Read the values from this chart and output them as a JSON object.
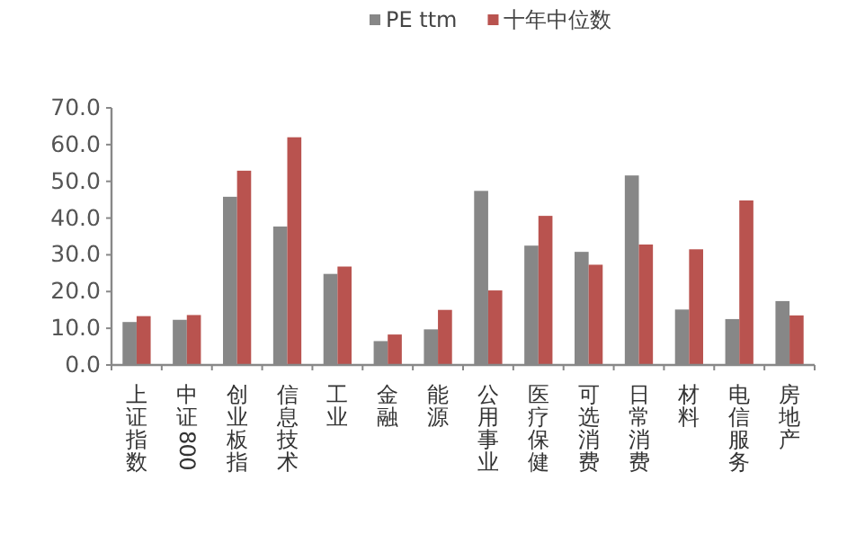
{
  "chart_data": {
    "type": "bar",
    "categories": [
      "上证指数",
      "中证800",
      "创业板指",
      "信息技术",
      "工业",
      "金融",
      "能源",
      "公用事业",
      "医疗保健",
      "可选消费",
      "日常消费",
      "材料",
      "电信服务",
      "房地产"
    ],
    "series": [
      {
        "name": "PE ttm",
        "color": "#878787",
        "values": [
          11.7,
          12.3,
          45.8,
          37.7,
          24.8,
          6.5,
          9.7,
          47.4,
          32.5,
          30.8,
          51.6,
          15.1,
          12.5,
          17.4
        ]
      },
      {
        "name": "十年中位数",
        "color": "#b9534f",
        "values": [
          13.3,
          13.6,
          52.9,
          62.0,
          26.8,
          8.3,
          15.0,
          20.3,
          40.6,
          27.3,
          32.8,
          31.5,
          44.8,
          13.5
        ]
      }
    ],
    "ylim": [
      0,
      70
    ],
    "yticks": [
      {
        "value": 0,
        "label": "0.0"
      },
      {
        "value": 10,
        "label": "10.0"
      },
      {
        "value": 20,
        "label": "20.0"
      },
      {
        "value": 30,
        "label": "30.0"
      },
      {
        "value": 40,
        "label": "40.0"
      },
      {
        "value": 50,
        "label": "50.0"
      },
      {
        "value": 60,
        "label": "60.0"
      },
      {
        "value": 70,
        "label": "70.0"
      }
    ],
    "legend": "top",
    "grid": false
  }
}
